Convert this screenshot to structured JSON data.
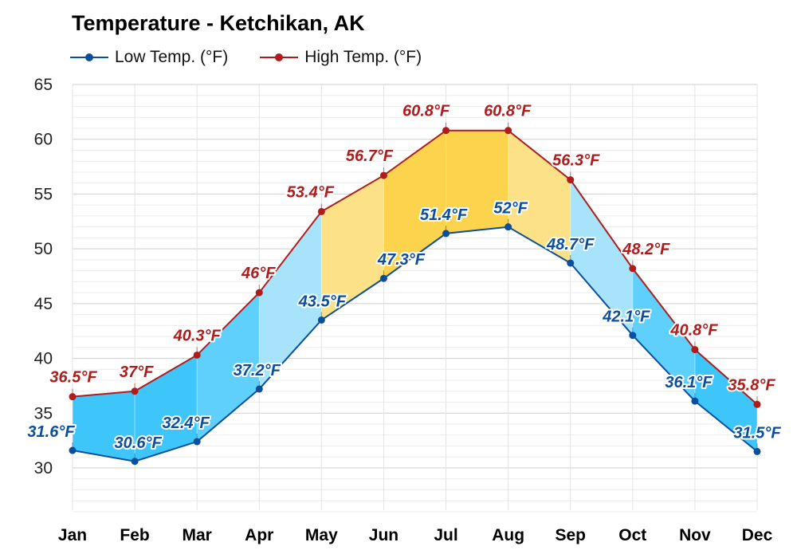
{
  "chart_data": {
    "type": "line",
    "title": "Temperature - Ketchikan, AK",
    "categories": [
      "Jan",
      "Feb",
      "Mar",
      "Apr",
      "May",
      "Jun",
      "Jul",
      "Aug",
      "Sep",
      "Oct",
      "Nov",
      "Dec"
    ],
    "series": [
      {
        "name": "Low Temp. (°F)",
        "color": "#0b4e9b",
        "values": [
          31.6,
          30.6,
          32.4,
          37.2,
          43.5,
          47.3,
          51.4,
          52,
          48.7,
          42.1,
          36.1,
          31.5
        ],
        "labels": [
          "31.6°F",
          "30.6°F",
          "32.4°F",
          "37.2°F",
          "43.5°F",
          "47.3°F",
          "51.4°F",
          "52°F",
          "48.7°F",
          "42.1°F",
          "36.1°F",
          "31.5°F"
        ]
      },
      {
        "name": "High Temp. (°F)",
        "color": "#b01c1c",
        "values": [
          36.5,
          37,
          40.3,
          46,
          53.4,
          56.7,
          60.8,
          60.8,
          56.3,
          48.2,
          40.8,
          35.8
        ],
        "labels": [
          "36.5°F",
          "37°F",
          "40.3°F",
          "46°F",
          "53.4°F",
          "56.7°F",
          "60.8°F",
          "60.8°F",
          "56.3°F",
          "48.2°F",
          "40.8°F",
          "35.8°F"
        ]
      }
    ],
    "band_colors": [
      "#3ec6fb",
      "#3ec6fb",
      "#5ed0fb",
      "#a7e4fb",
      "#fce187",
      "#fcd34d",
      "#fcd34d",
      "#fce187",
      "#a7e4fb",
      "#5ed0fb",
      "#3ec6fb",
      "#3ec6fb"
    ],
    "yticks": [
      30,
      35,
      40,
      45,
      50,
      55,
      60,
      65
    ],
    "ytick_labels": [
      "30",
      "35",
      "40",
      "45",
      "50",
      "55",
      "60",
      "65"
    ],
    "ylim": [
      26,
      65
    ],
    "xlabel": "",
    "ylabel": "",
    "grid": true,
    "legend": "top-left"
  }
}
